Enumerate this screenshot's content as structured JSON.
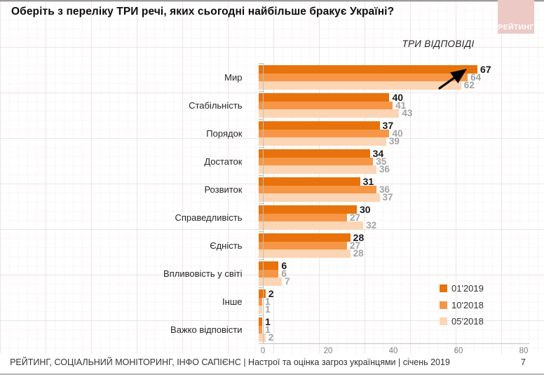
{
  "slide": {
    "title": "Оберіть з переліку ТРИ речі, яких сьогодні найбільше бракує Україні?",
    "subtitle": "ТРИ ВІДПОВІДІ",
    "logo_text": "РЕЙТИНГ",
    "logo_color": "#ecc9c5",
    "footer_text": "РЕЙТИНГ, СОЦІАЛЬНИЙ МОНІТОРИНГ, ІНФО САПІЄНС | Настрої та оцінка загроз українцями | січень 2019",
    "page_number": "7"
  },
  "chart_data": {
    "type": "bar",
    "orientation": "horizontal",
    "title": "Оберіть з переліку ТРИ речі, яких сьогодні найбільше бракує Україні?",
    "subtitle": "ТРИ ВІДПОВІДІ",
    "categories": [
      "Мир",
      "Стабільність",
      "Порядок",
      "Достаток",
      "Розвиток",
      "Справедливість",
      "Єдність",
      "Впливовість у світі",
      "Інше",
      "Важко відповісти"
    ],
    "series": [
      {
        "name": "01'2019",
        "color": "#E8730C",
        "values": [
          67,
          40,
          37,
          34,
          31,
          30,
          28,
          6,
          2,
          1
        ]
      },
      {
        "name": "10'2018",
        "color": "#F79646",
        "values": [
          64,
          41,
          40,
          35,
          36,
          27,
          27,
          6,
          1,
          1
        ]
      },
      {
        "name": "05'2018",
        "color": "#FCD5B4",
        "values": [
          62,
          43,
          39,
          36,
          37,
          32,
          28,
          7,
          1,
          2
        ]
      }
    ],
    "xlim": [
      0,
      80
    ],
    "x_ticks": [
      0,
      20,
      40,
      60,
      80
    ],
    "grid": false,
    "value_labels": true,
    "legend_position": "right-bottom",
    "value_label_colors": {
      "first_series": "#1a1a1a",
      "other_series": "#a3a3a3"
    },
    "annotations": [
      {
        "type": "arrow",
        "icon": "trend-up-arrow-icon",
        "target_category": "Мир",
        "target_series": "01'2019"
      }
    ]
  }
}
